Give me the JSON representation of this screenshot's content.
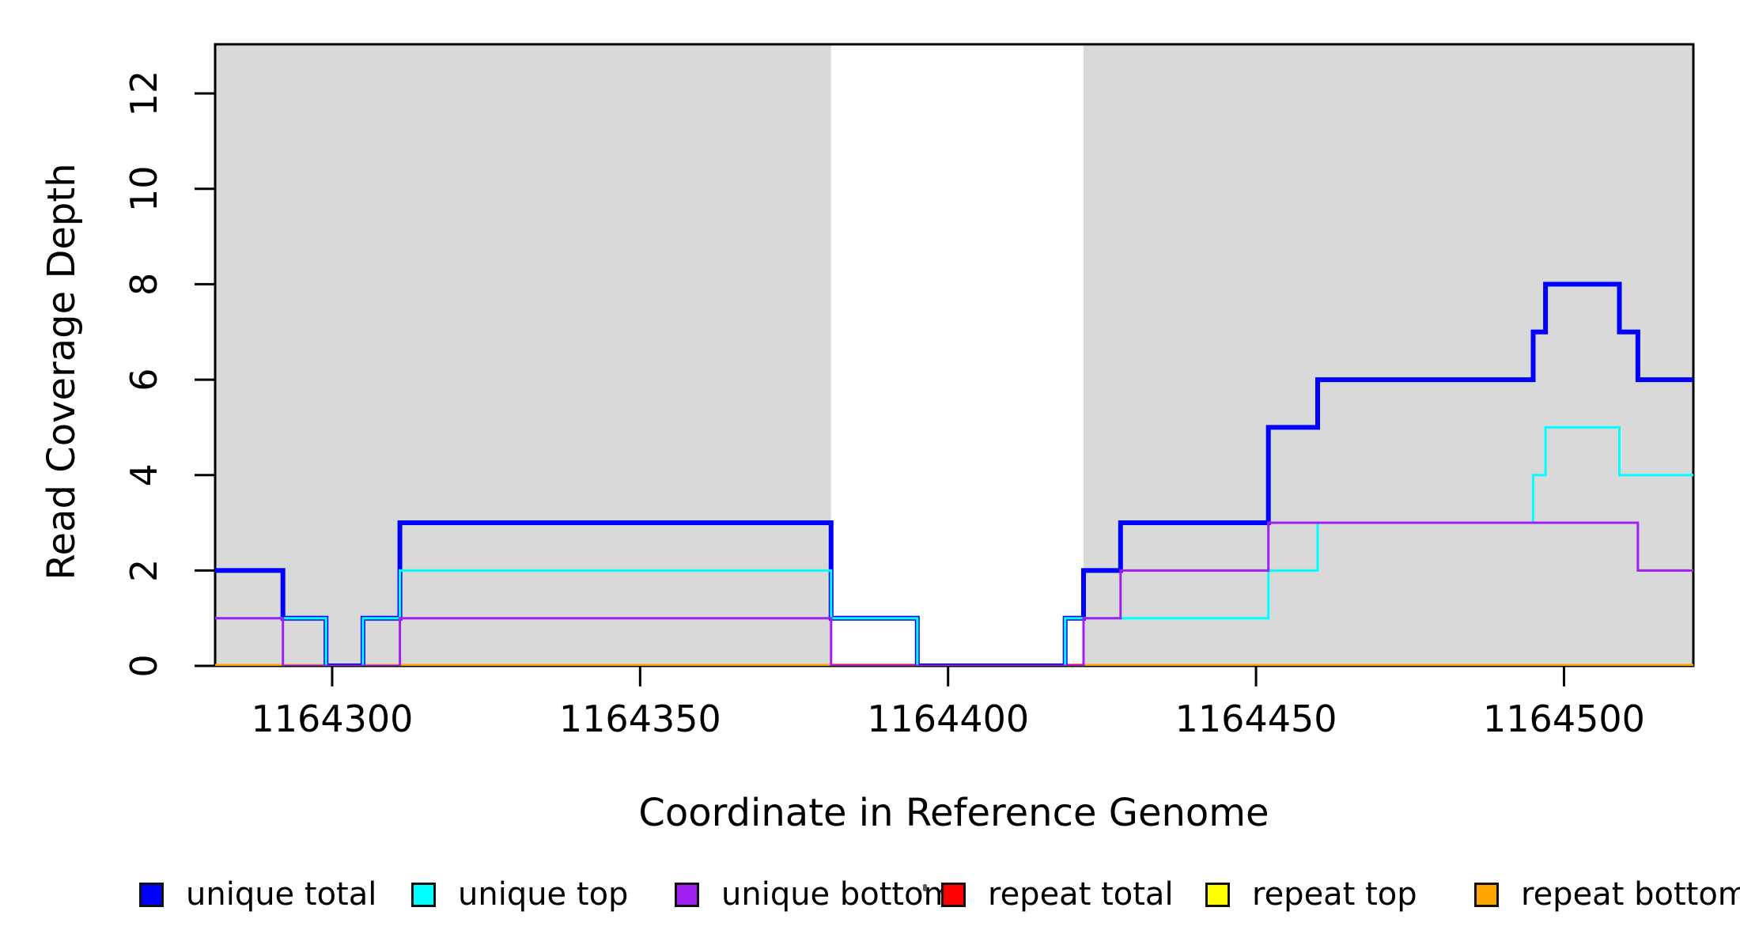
{
  "chart_data": {
    "type": "line",
    "subtype": "step",
    "title": "",
    "xlabel": "Coordinate in Reference Genome",
    "ylabel": "Read Coverage Depth",
    "xlim": [
      1164281,
      1164521
    ],
    "ylim": [
      0,
      13.03
    ],
    "x_ticks": [
      1164300,
      1164350,
      1164400,
      1164450,
      1164500
    ],
    "y_ticks": [
      0,
      2,
      4,
      6,
      8,
      10,
      12
    ],
    "grid": false,
    "background_color": "#ffffff",
    "shading_color": "#d9d9d9",
    "axis_color": "#000000",
    "shaded_regions": [
      {
        "name": "repeat-region-left",
        "x0": 1164281,
        "x1": 1164381
      },
      {
        "name": "repeat-region-right",
        "x0": 1164422,
        "x1": 1164521
      }
    ],
    "series": [
      {
        "name": "unique total",
        "color": "#0000ff",
        "width": 6,
        "segments": [
          [
            [
              1164281,
              2
            ],
            [
              1164292,
              1
            ],
            [
              1164299,
              0
            ],
            [
              1164305,
              1
            ],
            [
              1164311,
              3
            ],
            [
              1164381,
              1
            ],
            [
              1164395,
              0
            ],
            [
              1164419,
              1
            ],
            [
              1164422,
              2
            ],
            [
              1164428,
              3
            ],
            [
              1164452,
              5
            ],
            [
              1164460,
              6
            ],
            [
              1164495,
              7
            ],
            [
              1164497,
              8
            ],
            [
              1164509,
              7
            ],
            [
              1164512,
              6
            ],
            [
              1164521,
              6
            ]
          ]
        ]
      },
      {
        "name": "unique top",
        "color": "#00ffff",
        "width": 3,
        "segments": [
          [
            [
              1164281,
              1
            ],
            [
              1164299,
              0
            ],
            [
              1164305,
              1
            ],
            [
              1164311,
              2
            ],
            [
              1164381,
              1
            ],
            [
              1164395,
              0
            ],
            [
              1164419,
              1
            ],
            [
              1164452,
              2
            ],
            [
              1164460,
              3
            ],
            [
              1164495,
              4
            ],
            [
              1164497,
              5
            ],
            [
              1164509,
              4
            ],
            [
              1164521,
              4
            ]
          ]
        ]
      },
      {
        "name": "unique bottom",
        "color": "#a020f0",
        "width": 3,
        "segments": [
          [
            [
              1164281,
              1
            ],
            [
              1164292,
              0
            ],
            [
              1164311,
              1
            ],
            [
              1164381,
              0
            ],
            [
              1164422,
              1
            ],
            [
              1164428,
              2
            ],
            [
              1164452,
              3
            ],
            [
              1164512,
              2
            ],
            [
              1164521,
              2
            ]
          ]
        ]
      },
      {
        "name": "repeat total",
        "color": "#ff0000",
        "width": 5,
        "segments": [
          [
            [
              1164281,
              0
            ],
            [
              1164521,
              0
            ]
          ]
        ]
      },
      {
        "name": "repeat top",
        "color": "#ffff00",
        "width": 5,
        "segments": [
          [
            [
              1164281,
              0
            ],
            [
              1164381,
              0
            ]
          ],
          [
            [
              1164422,
              0
            ],
            [
              1164521,
              0
            ]
          ]
        ]
      },
      {
        "name": "repeat bottom",
        "color": "#ffa500",
        "width": 5,
        "segments": [
          [
            [
              1164281,
              0
            ],
            [
              1164381,
              0
            ]
          ],
          [
            [
              1164422,
              0
            ],
            [
              1164521,
              0
            ]
          ]
        ]
      }
    ],
    "draw_order": [
      3,
      4,
      5,
      0,
      1,
      2
    ],
    "legend": [
      {
        "label": "unique total",
        "color": "#0000ff"
      },
      {
        "label": "unique top",
        "color": "#00ffff"
      },
      {
        "label": "unique bottom",
        "color": "#a020f0"
      },
      {
        "label": "repeat total",
        "color": "#ff0000"
      },
      {
        "label": "repeat top",
        "color": "#ffff00"
      },
      {
        "label": "repeat bottom",
        "color": "#ffa500"
      }
    ],
    "legend_position": "bottom"
  }
}
